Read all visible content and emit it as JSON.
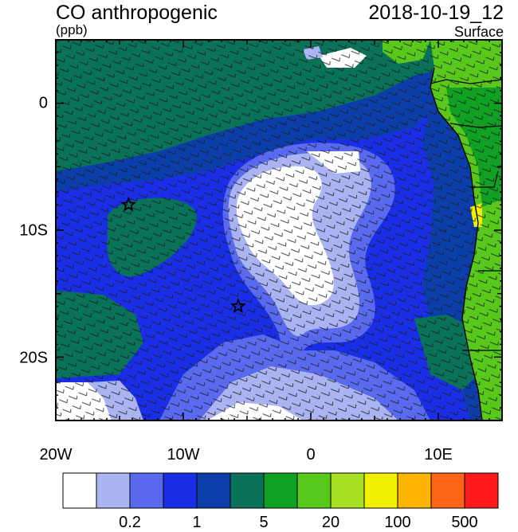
{
  "header": {
    "title": "CO anthropogenic",
    "units": "(ppb)",
    "datetime": "2018-10-19_12",
    "level": "Surface"
  },
  "map": {
    "lon_range": [
      -20,
      15
    ],
    "lat_range": [
      -25,
      5
    ],
    "x_tick_labels": [
      "20W",
      "10W",
      "0",
      "10E"
    ],
    "y_tick_labels": [
      "0",
      "10S",
      "20S"
    ],
    "markers": [
      {
        "name": "star-marker-1",
        "lon": -14.3,
        "lat": -8
      },
      {
        "name": "star-marker-2",
        "lon": -5.7,
        "lat": -16
      }
    ]
  },
  "colorbar": {
    "colors": [
      "#ffffff",
      "#aab4f2",
      "#5a6aee",
      "#1a2ee6",
      "#0b3ea8",
      "#0a7258",
      "#10a024",
      "#58c81c",
      "#a8e024",
      "#f0f000",
      "#ffb400",
      "#ff6414",
      "#ff1a1a"
    ],
    "labels": [
      "0.2",
      "1",
      "5",
      "20",
      "100",
      "500"
    ]
  }
}
